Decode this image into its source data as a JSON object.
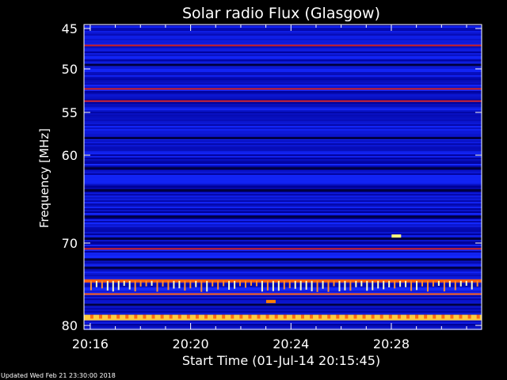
{
  "chart_data": {
    "type": "heatmap",
    "title": "Solar radio Flux (Glasgow)",
    "ylabel": "Frequency [MHz]",
    "xlabel": "Start Time (01-Jul-14 20:15:45)",
    "y_ticks": [
      45,
      50,
      55,
      60,
      70,
      80
    ],
    "ylim": [
      45,
      80
    ],
    "x_ticks": [
      "20:16",
      "20:20",
      "20:24",
      "20:28"
    ],
    "x_tick_minutes": [
      16,
      20,
      24,
      28
    ],
    "xlim_minutes": [
      15.75,
      31.6
    ],
    "colormap": [
      "#000050",
      "#0000c8",
      "#2040ff",
      "#ff2020",
      "#ff8000",
      "#ffff80",
      "#ffffff"
    ],
    "bright_bands_mhz": [
      {
        "freq": 47.1,
        "intensity": 0.55
      },
      {
        "freq": 52.3,
        "intensity": 0.45
      },
      {
        "freq": 53.7,
        "intensity": 0.4
      },
      {
        "freq": 70.7,
        "intensity": 0.5
      },
      {
        "freq": 74.6,
        "intensity": 0.9
      },
      {
        "freq": 76.2,
        "intensity": 0.75
      },
      {
        "freq": 78.9,
        "intensity": 0.95
      },
      {
        "freq": 79.2,
        "intensity": 1.0
      }
    ],
    "dark_bands_mhz": [
      49.5,
      58.0,
      61.5,
      64.0,
      67.0,
      69.5,
      72.0,
      73.0,
      77.5
    ],
    "spots": [
      {
        "time_min": 28.2,
        "freq": 69.2,
        "intensity": 1.0
      },
      {
        "time_min": 23.2,
        "freq": 77.1,
        "intensity": 0.8
      }
    ]
  },
  "footer": {
    "updated": "Updated Wed Feb 21 23:30:00 2018"
  }
}
